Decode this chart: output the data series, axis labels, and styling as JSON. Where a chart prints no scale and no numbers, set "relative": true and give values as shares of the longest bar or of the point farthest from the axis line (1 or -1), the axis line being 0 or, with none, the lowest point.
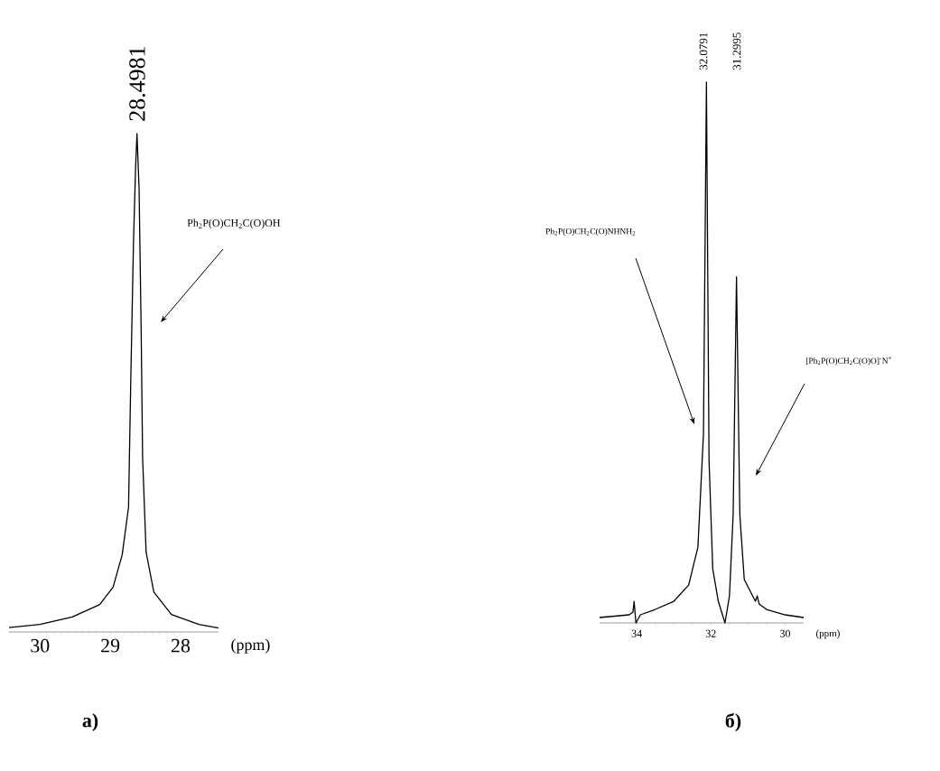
{
  "chart_data": [
    {
      "type": "line",
      "relative": true,
      "title": "а)",
      "xlabel": "(ppm)",
      "color": "#000000",
      "tick_labels": "x",
      "xlim": [
        30.44,
        27.46
      ],
      "xticks": [
        30,
        29,
        28
      ],
      "x": [
        30.44,
        30.0,
        29.54,
        29.15,
        28.96,
        28.83,
        28.74,
        28.71,
        28.67,
        28.64,
        28.62,
        28.59,
        28.56,
        28.54,
        28.49,
        28.38,
        28.13,
        27.74,
        27.46
      ],
      "values": [
        0.009,
        0.015,
        0.03,
        0.055,
        0.09,
        0.155,
        0.25,
        0.49,
        0.78,
        0.93,
        1.0,
        0.89,
        0.6,
        0.35,
        0.16,
        0.08,
        0.035,
        0.015,
        0.008
      ],
      "annotations": [
        "28.4981",
        "Ph$_{2}$P(O)CH$_{2}$C(O)OH"
      ]
    },
    {
      "type": "line",
      "relative": true,
      "title": "б)",
      "xlabel": "(ppm)",
      "color": "#000000",
      "tick_labels": "x",
      "xlim": [
        35.0,
        29.5
      ],
      "xticks": [
        34,
        32,
        30
      ],
      "x": [
        35.0,
        34.2,
        34.1,
        34.07,
        34.02,
        33.9,
        33.5,
        33.0,
        32.6,
        32.35,
        32.2,
        32.12,
        32.05,
        31.95,
        31.8,
        31.62,
        31.5,
        31.4,
        31.31,
        31.22,
        31.1,
        30.8,
        30.75,
        30.7,
        30.5,
        30.0,
        29.5
      ],
      "values": [
        0.01,
        0.015,
        0.02,
        0.04,
        0.0,
        0.015,
        0.025,
        0.04,
        0.07,
        0.14,
        0.35,
        1.0,
        0.3,
        0.1,
        0.04,
        0.0,
        0.05,
        0.2,
        0.64,
        0.2,
        0.08,
        0.04,
        0.05,
        0.035,
        0.025,
        0.015,
        0.01
      ],
      "annotations": [
        "32.0791",
        "31.2995",
        "Ph$_{2}$P(O)CH$_{2}$C(O)NHNH$_{2}$",
        "[Ph$_{2}$P(O)CH$_{2}$C(O)O]$^{-}$N$^{+}$"
      ]
    }
  ]
}
